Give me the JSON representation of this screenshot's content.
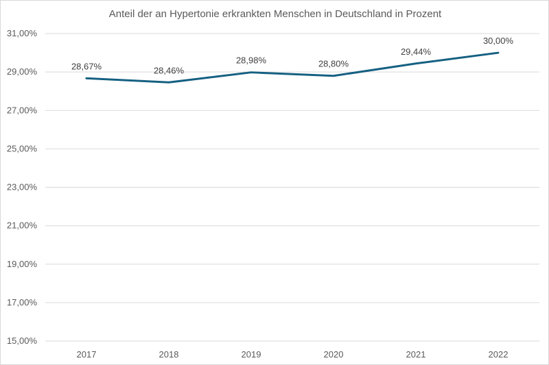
{
  "chart_data": {
    "type": "line",
    "title": "Anteil der an Hypertonie erkrankten Menschen in Deutschland in Prozent",
    "xlabel": "",
    "ylabel": "",
    "categories": [
      "2017",
      "2018",
      "2019",
      "2020",
      "2021",
      "2022"
    ],
    "series": [
      {
        "name": "Anteil",
        "values": [
          28.67,
          28.46,
          28.98,
          28.8,
          29.44,
          30.0
        ],
        "labels": [
          "28,67%",
          "28,46%",
          "28,98%",
          "28,80%",
          "29,44%",
          "30,00%"
        ],
        "color": "#156082"
      }
    ],
    "ylim": [
      15,
      31
    ],
    "yticks": [
      15,
      17,
      19,
      21,
      23,
      25,
      27,
      29,
      31
    ],
    "ytick_labels": [
      "15,00%",
      "17,00%",
      "19,00%",
      "21,00%",
      "23,00%",
      "25,00%",
      "27,00%",
      "29,00%",
      "31,00%"
    ],
    "grid": true,
    "legend": "none"
  }
}
